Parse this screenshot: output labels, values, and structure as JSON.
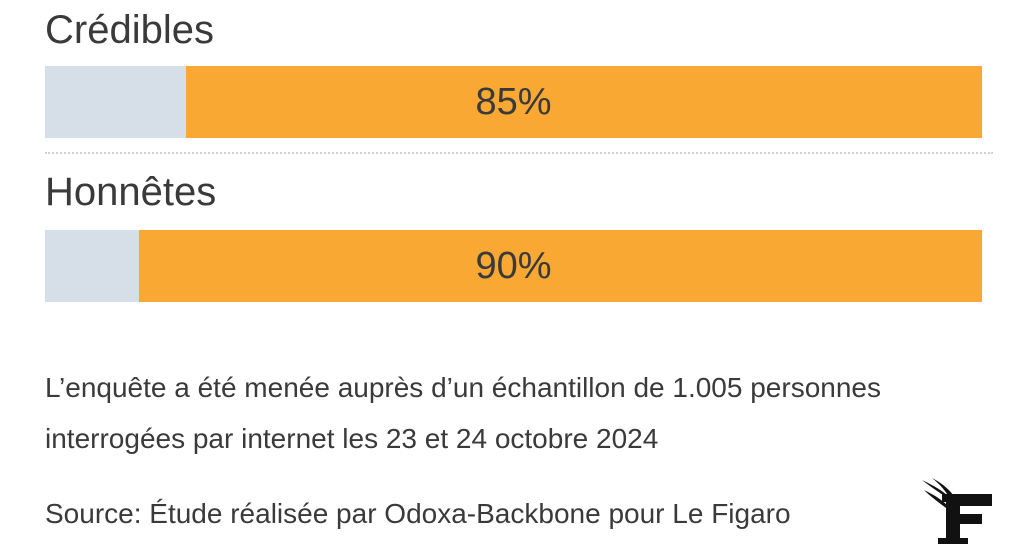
{
  "chart_data": {
    "type": "bar",
    "orientation": "horizontal",
    "categories": [
      "Crédibles",
      "Honnêtes"
    ],
    "values": [
      85,
      90
    ],
    "value_labels": [
      "85%",
      "90%"
    ],
    "ylim": [
      0,
      100
    ],
    "colors": {
      "fill": "#f9a833",
      "track": "#d6dfe7"
    }
  },
  "note": "L’enquête a été menée auprès d’un échantillon de 1.005 personnes interrogées par internet les 23 et 24 octobre 2024",
  "source": "Source: Étude réalisée par Odoxa-Backbone pour Le Figaro",
  "logo": {
    "icon": "le-figaro-logo-icon"
  }
}
